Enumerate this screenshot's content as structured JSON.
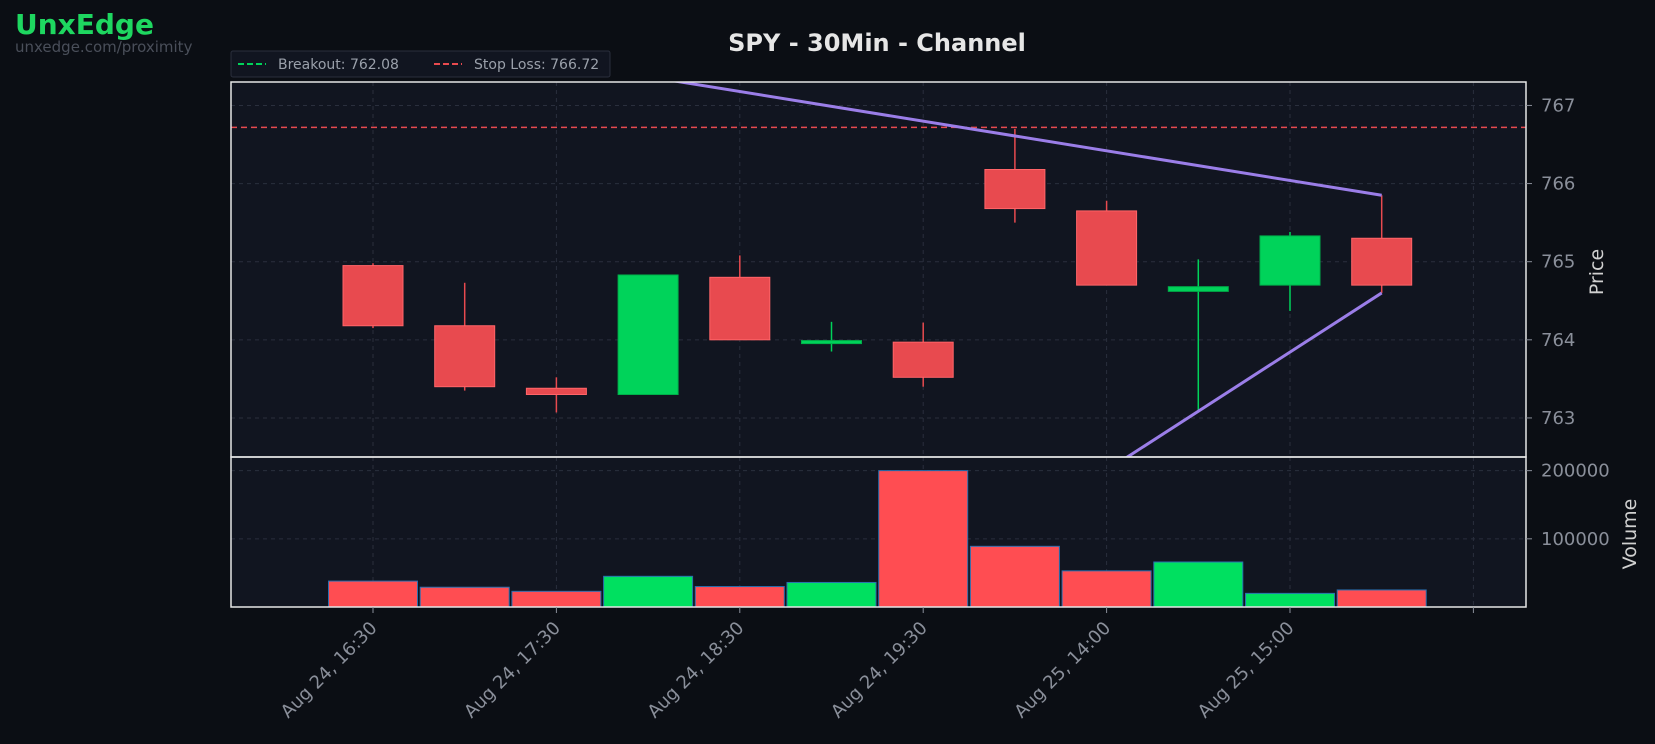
{
  "brand": {
    "name": "UnxEdge",
    "url": "unxedge.com/proximity"
  },
  "colors": {
    "background": "#0b0e14",
    "panel": "#111520",
    "up": "#00d35a",
    "down": "#e84a4f",
    "volume_down": "#ff4d52",
    "volume_up": "#00e060",
    "channel": "#9b7ee8",
    "breakout": "#00d35a",
    "stop_loss": "#e84a4f"
  },
  "chart_data": {
    "type": "candlestick",
    "title": "SPY - 30Min - Channel",
    "ylabel": "Price",
    "volume_label": "Volume",
    "grid": true,
    "legend_position": "top-left",
    "legend": [
      {
        "label": "Breakout: 762.08",
        "style": "dashed",
        "color": "#00d35a"
      },
      {
        "label": "Stop Loss: 766.72",
        "style": "dashed",
        "color": "#e84a4f"
      }
    ],
    "ylim": [
      762.5,
      767.3
    ],
    "yticks": [
      763,
      764,
      765,
      766,
      767
    ],
    "volume_ylim": [
      0,
      220000
    ],
    "volume_ticks": [
      {
        "value": 100000,
        "label": "100000"
      },
      {
        "value": 200000,
        "label": "200000"
      }
    ],
    "xticks": [
      {
        "index": 0,
        "label": "Aug 24, 16:30"
      },
      {
        "index": 2,
        "label": "Aug 24, 17:30"
      },
      {
        "index": 4,
        "label": "Aug 24, 18:30"
      },
      {
        "index": 6,
        "label": "Aug 24, 19:30"
      },
      {
        "index": 8,
        "label": "Aug 25, 14:00"
      },
      {
        "index": 10,
        "label": "Aug 25, 15:00"
      }
    ],
    "candles": [
      {
        "open": 764.95,
        "high": 764.98,
        "low": 764.15,
        "close": 764.18,
        "volume": 38000
      },
      {
        "open": 764.18,
        "high": 764.73,
        "low": 763.35,
        "close": 763.4,
        "volume": 29000
      },
      {
        "open": 763.38,
        "high": 763.52,
        "low": 763.07,
        "close": 763.3,
        "volume": 23000
      },
      {
        "open": 763.3,
        "high": 764.83,
        "low": 763.3,
        "close": 764.83,
        "volume": 45000
      },
      {
        "open": 764.8,
        "high": 765.08,
        "low": 764.0,
        "close": 764.0,
        "volume": 30000
      },
      {
        "open": 763.96,
        "high": 764.23,
        "low": 763.85,
        "close": 763.99,
        "volume": 36000
      },
      {
        "open": 763.97,
        "high": 764.22,
        "low": 763.4,
        "close": 763.52,
        "volume": 200000
      },
      {
        "open": 766.18,
        "high": 766.7,
        "low": 765.5,
        "close": 765.68,
        "volume": 89000
      },
      {
        "open": 765.65,
        "high": 765.78,
        "low": 764.7,
        "close": 764.7,
        "volume": 53000
      },
      {
        "open": 764.62,
        "high": 765.03,
        "low": 763.1,
        "close": 764.68,
        "volume": 66000
      },
      {
        "open": 764.7,
        "high": 765.38,
        "low": 764.37,
        "close": 765.33,
        "volume": 20000
      },
      {
        "open": 765.3,
        "high": 765.85,
        "low": 764.6,
        "close": 764.7,
        "volume": 25000
      }
    ],
    "volume_up_flags": [
      false,
      false,
      false,
      true,
      false,
      true,
      false,
      false,
      false,
      true,
      true,
      false
    ],
    "stop_loss": 766.72,
    "channel_upper": {
      "from": {
        "index": 3.2,
        "price": 767.33
      },
      "to": {
        "index": 11,
        "price": 765.85
      }
    },
    "channel_lower": {
      "from": {
        "index": 8.2,
        "price": 762.48
      },
      "to": {
        "index": 11,
        "price": 764.6
      }
    }
  }
}
